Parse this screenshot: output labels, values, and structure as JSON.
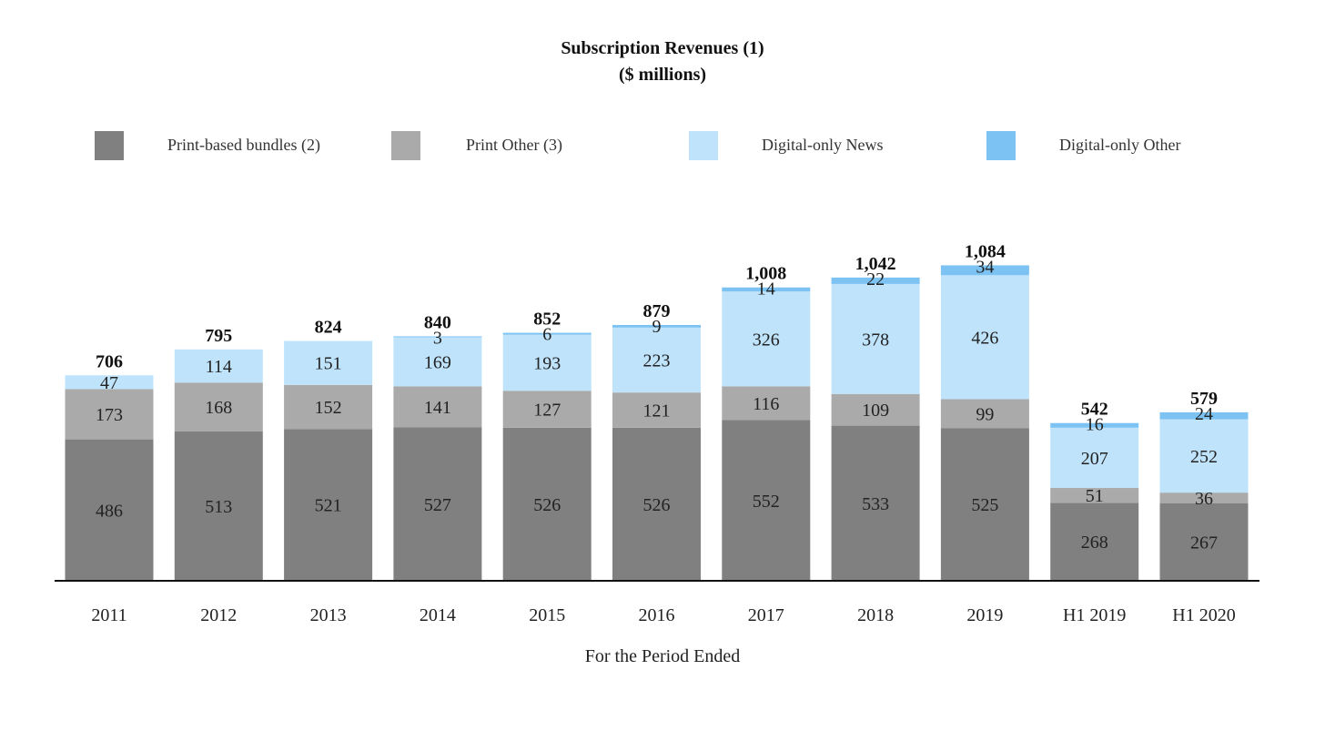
{
  "chart_data": {
    "type": "bar",
    "stacked": true,
    "title": "Subscription Revenues (1)",
    "subtitle": "($ millions)",
    "xlabel": "For the Period Ended",
    "ylabel": "",
    "ylim": [
      0,
      1240
    ],
    "grid": false,
    "legend_position": "top",
    "categories": [
      "2011",
      "2012",
      "2013",
      "2014",
      "2015",
      "2016",
      "2017",
      "2018",
      "2019",
      "H1 2019",
      "H1 2020"
    ],
    "series": [
      {
        "name": "Print-based bundles (2)",
        "color": "#808080",
        "values": [
          486,
          513,
          521,
          527,
          526,
          526,
          552,
          533,
          525,
          268,
          267
        ]
      },
      {
        "name": "Print Other (3)",
        "color": "#aaaaaa",
        "values": [
          173,
          168,
          152,
          141,
          127,
          121,
          116,
          109,
          99,
          51,
          36
        ]
      },
      {
        "name": "Digital-only News",
        "color": "#bfe3fb",
        "values": [
          47,
          114,
          151,
          169,
          193,
          223,
          326,
          378,
          426,
          207,
          252
        ]
      },
      {
        "name": "Digital-only Other",
        "color": "#7cc2f2",
        "values": [
          0,
          0,
          0,
          3,
          6,
          9,
          14,
          22,
          34,
          16,
          24
        ]
      }
    ],
    "totals": [
      "706",
      "795",
      "824",
      "840",
      "852",
      "879",
      "1,008",
      "1,042",
      "1,084",
      "542",
      "579"
    ],
    "segment_labels": [
      [
        "486",
        "173",
        "47",
        ""
      ],
      [
        "513",
        "168",
        "114",
        ""
      ],
      [
        "521",
        "152",
        "151",
        ""
      ],
      [
        "527",
        "141",
        "169",
        "3"
      ],
      [
        "526",
        "127",
        "193",
        "6"
      ],
      [
        "526",
        "121",
        "223",
        "9"
      ],
      [
        "552",
        "116",
        "326",
        "14"
      ],
      [
        "533",
        "109",
        "378",
        "22"
      ],
      [
        "525",
        "99",
        "426",
        "34"
      ],
      [
        "268",
        "51",
        "207",
        "16"
      ],
      [
        "267",
        "36",
        "252",
        "24"
      ]
    ]
  }
}
